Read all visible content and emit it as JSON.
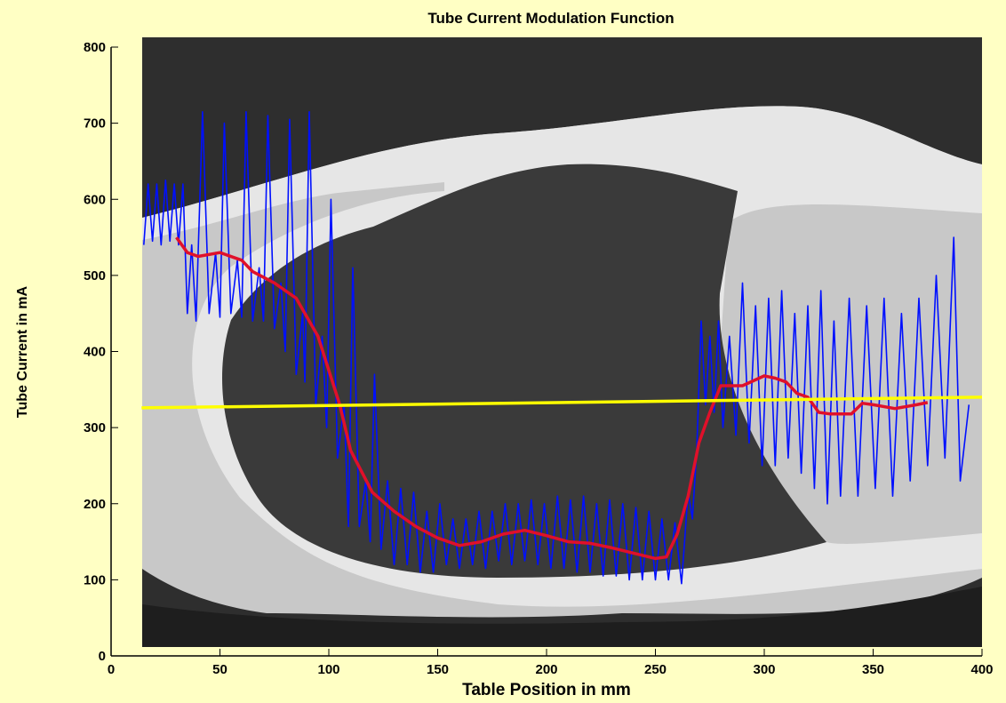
{
  "chart_data": {
    "type": "line",
    "title": "Tube Current Modulation Function",
    "x_label": "Table Position in mm",
    "y_label": "Tube Current in mA",
    "xlim": [
      0,
      400
    ],
    "xticks": [
      0,
      50,
      100,
      150,
      200,
      250,
      300,
      350,
      400
    ],
    "ylim": [
      0,
      800
    ],
    "yticks": [
      0,
      100,
      200,
      300,
      400,
      500,
      600,
      700,
      800
    ],
    "grid": false,
    "series": [
      {
        "color": "#0010ff",
        "x": [
          15,
          17,
          19,
          21,
          23,
          25,
          27,
          29,
          31,
          33,
          35,
          37,
          39,
          42,
          45,
          48,
          50,
          52,
          55,
          58,
          60,
          62,
          65,
          68,
          70,
          72,
          75,
          78,
          80,
          82,
          85,
          88,
          89,
          91,
          94,
          97,
          99,
          101,
          104,
          107,
          109,
          111,
          114,
          117,
          119,
          121,
          124,
          127,
          130,
          133,
          136,
          139,
          142,
          145,
          148,
          151,
          154,
          157,
          160,
          163,
          166,
          169,
          172,
          175,
          178,
          181,
          184,
          187,
          190,
          193,
          196,
          199,
          202,
          205,
          208,
          211,
          214,
          217,
          220,
          223,
          226,
          229,
          232,
          235,
          238,
          241,
          244,
          247,
          250,
          253,
          256,
          259,
          262,
          265,
          267,
          269,
          271,
          273,
          275,
          277,
          279,
          281,
          284,
          287,
          290,
          293,
          296,
          299,
          302,
          305,
          308,
          311,
          314,
          317,
          320,
          323,
          326,
          329,
          332,
          335,
          339,
          343,
          347,
          351,
          355,
          359,
          363,
          367,
          371,
          375,
          379,
          383,
          387,
          390,
          394
        ],
        "values": [
          540,
          620,
          545,
          620,
          540,
          625,
          545,
          620,
          540,
          620,
          450,
          540,
          440,
          715,
          450,
          530,
          445,
          700,
          450,
          520,
          445,
          715,
          440,
          510,
          440,
          710,
          430,
          490,
          400,
          705,
          370,
          450,
          360,
          715,
          330,
          420,
          300,
          600,
          260,
          330,
          170,
          510,
          170,
          230,
          150,
          370,
          140,
          230,
          120,
          220,
          120,
          215,
          110,
          190,
          110,
          200,
          120,
          180,
          115,
          180,
          120,
          190,
          115,
          190,
          125,
          200,
          120,
          200,
          125,
          205,
          120,
          200,
          115,
          210,
          115,
          205,
          110,
          210,
          110,
          200,
          105,
          205,
          105,
          200,
          100,
          195,
          100,
          190,
          100,
          180,
          100,
          175,
          95,
          215,
          180,
          270,
          440,
          330,
          420,
          320,
          440,
          300,
          420,
          290,
          490,
          280,
          460,
          250,
          470,
          250,
          480,
          260,
          450,
          240,
          460,
          220,
          480,
          200,
          440,
          210,
          470,
          210,
          460,
          220,
          470,
          210,
          450,
          230,
          470,
          250,
          500,
          260,
          550,
          230,
          330
        ]
      },
      {
        "color": "#e0102a",
        "x": [
          30,
          35,
          40,
          50,
          60,
          65,
          75,
          85,
          95,
          105,
          110,
          120,
          130,
          140,
          150,
          160,
          170,
          180,
          190,
          200,
          210,
          220,
          230,
          240,
          250,
          255,
          260,
          265,
          270,
          275,
          280,
          290,
          300,
          305,
          310,
          315,
          320,
          325,
          330,
          340,
          345,
          350,
          360,
          370,
          375
        ],
        "values": [
          550,
          530,
          525,
          530,
          520,
          505,
          490,
          470,
          420,
          330,
          270,
          215,
          190,
          170,
          155,
          145,
          150,
          160,
          165,
          158,
          150,
          148,
          142,
          135,
          128,
          130,
          160,
          210,
          280,
          320,
          355,
          355,
          368,
          365,
          360,
          345,
          340,
          320,
          318,
          318,
          332,
          330,
          325,
          330,
          333
        ]
      },
      {
        "color": "#ffff00",
        "x": [
          14,
          400
        ],
        "values": [
          326,
          340
        ]
      }
    ]
  }
}
